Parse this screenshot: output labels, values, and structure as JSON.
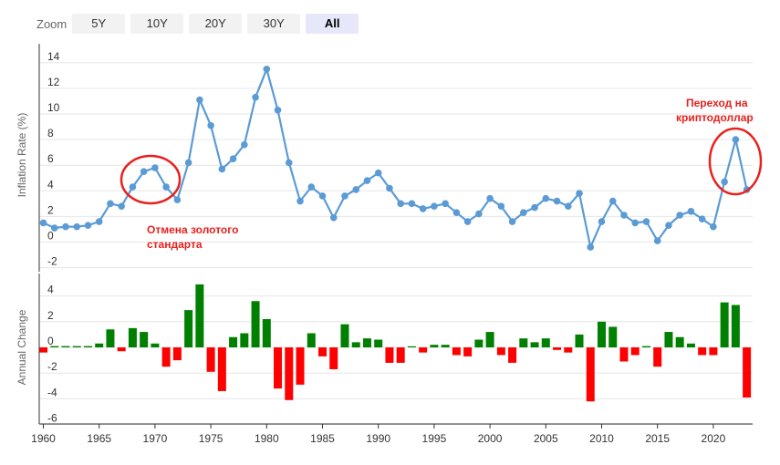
{
  "zoom": {
    "label": "Zoom",
    "buttons": [
      "5Y",
      "10Y",
      "20Y",
      "30Y",
      "All"
    ],
    "active": "All"
  },
  "annotations": [
    {
      "lines": [
        "Отмена золотого",
        "стандарта"
      ]
    },
    {
      "lines": [
        "Переход на",
        "криптодоллар"
      ]
    }
  ],
  "colors": {
    "line": "#5b9bd5",
    "positive": "#008000",
    "negative": "#ff0000",
    "annotation": "#e8211d"
  },
  "chart_data": [
    {
      "type": "line",
      "ylabel": "Inflation Rate (%)",
      "x": [
        1960,
        1961,
        1962,
        1963,
        1964,
        1965,
        1966,
        1967,
        1968,
        1969,
        1970,
        1971,
        1972,
        1973,
        1974,
        1975,
        1976,
        1977,
        1978,
        1979,
        1980,
        1981,
        1982,
        1983,
        1984,
        1985,
        1986,
        1987,
        1988,
        1989,
        1990,
        1991,
        1992,
        1993,
        1994,
        1995,
        1996,
        1997,
        1998,
        1999,
        2000,
        2001,
        2002,
        2003,
        2004,
        2005,
        2006,
        2007,
        2008,
        2009,
        2010,
        2011,
        2012,
        2013,
        2014,
        2015,
        2016,
        2017,
        2018,
        2019,
        2020,
        2021,
        2022,
        2023
      ],
      "values": [
        1.5,
        1.1,
        1.2,
        1.2,
        1.3,
        1.6,
        3.0,
        2.8,
        4.3,
        5.5,
        5.8,
        4.3,
        3.3,
        6.2,
        11.1,
        9.1,
        5.7,
        6.5,
        7.6,
        11.3,
        13.5,
        10.3,
        6.2,
        3.2,
        4.3,
        3.6,
        1.9,
        3.6,
        4.1,
        4.8,
        5.4,
        4.2,
        3.0,
        3.0,
        2.6,
        2.8,
        3.0,
        2.3,
        1.6,
        2.2,
        3.4,
        2.8,
        1.6,
        2.3,
        2.7,
        3.4,
        3.2,
        2.8,
        3.8,
        -0.4,
        1.6,
        3.2,
        2.1,
        1.5,
        1.6,
        0.1,
        1.3,
        2.1,
        2.4,
        1.8,
        1.2,
        4.7,
        8.0,
        4.1
      ],
      "ylim": [
        -3,
        15
      ],
      "yticks": [
        -2,
        0,
        2,
        4,
        6,
        8,
        10,
        12,
        14
      ]
    },
    {
      "type": "bar",
      "ylabel": "Annual Change",
      "x": [
        1960,
        1961,
        1962,
        1963,
        1964,
        1965,
        1966,
        1967,
        1968,
        1969,
        1970,
        1971,
        1972,
        1973,
        1974,
        1975,
        1976,
        1977,
        1978,
        1979,
        1980,
        1981,
        1982,
        1983,
        1984,
        1985,
        1986,
        1987,
        1988,
        1989,
        1990,
        1991,
        1992,
        1993,
        1994,
        1995,
        1996,
        1997,
        1998,
        1999,
        2000,
        2001,
        2002,
        2003,
        2004,
        2005,
        2006,
        2007,
        2008,
        2009,
        2010,
        2011,
        2012,
        2013,
        2014,
        2015,
        2016,
        2017,
        2018,
        2019,
        2020,
        2021,
        2022,
        2023
      ],
      "values": [
        -0.4,
        0.1,
        0.1,
        0.1,
        0.1,
        0.3,
        1.4,
        -0.3,
        1.5,
        1.2,
        0.3,
        -1.5,
        -1.0,
        2.9,
        4.9,
        -1.9,
        -3.4,
        0.8,
        1.1,
        3.6,
        2.2,
        -3.2,
        -4.1,
        -2.9,
        1.1,
        -0.7,
        -1.7,
        1.8,
        0.4,
        0.7,
        0.6,
        -1.2,
        -1.2,
        0.0,
        -0.4,
        0.2,
        0.2,
        -0.6,
        -0.7,
        0.6,
        1.2,
        -0.6,
        -1.2,
        0.7,
        0.4,
        0.7,
        -0.2,
        -0.4,
        1.0,
        -4.2,
        2.0,
        1.6,
        -1.1,
        -0.6,
        0.1,
        -1.5,
        1.2,
        0.8,
        0.3,
        -0.6,
        -0.6,
        3.5,
        3.3,
        -3.9
      ],
      "ylim": [
        -6,
        6
      ],
      "yticks": [
        -6,
        -4,
        -2,
        0,
        2,
        4
      ]
    }
  ],
  "xaxis": {
    "ticks": [
      "1960",
      "1965",
      "1970",
      "1975",
      "1980",
      "1985",
      "1990",
      "1995",
      "2000",
      "2005",
      "2010",
      "2015",
      "2020"
    ]
  }
}
